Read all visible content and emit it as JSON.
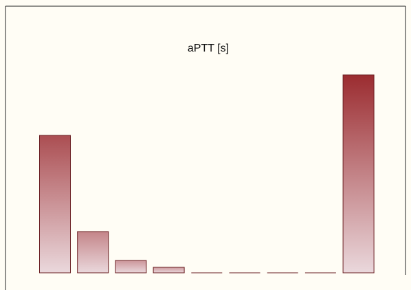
{
  "chart_data": {
    "type": "bar",
    "title": "aPTT [s]",
    "xlabel": "",
    "ylabel": "",
    "categories": [
      "",
      "",
      "",
      "",
      "",
      "",
      "",
      "",
      ""
    ],
    "values": [
      100,
      30,
      9,
      4,
      0,
      0,
      0,
      0,
      144
    ],
    "ylim": [
      0,
      160
    ],
    "grid": false,
    "legend": "none",
    "colors": {
      "bar_top_dark": "#9b2c30",
      "bar_bottom_light": "#ead8dc",
      "bar_stroke": "#6a1e22",
      "frame_border": "#222222",
      "background": "#fffdf5"
    }
  }
}
